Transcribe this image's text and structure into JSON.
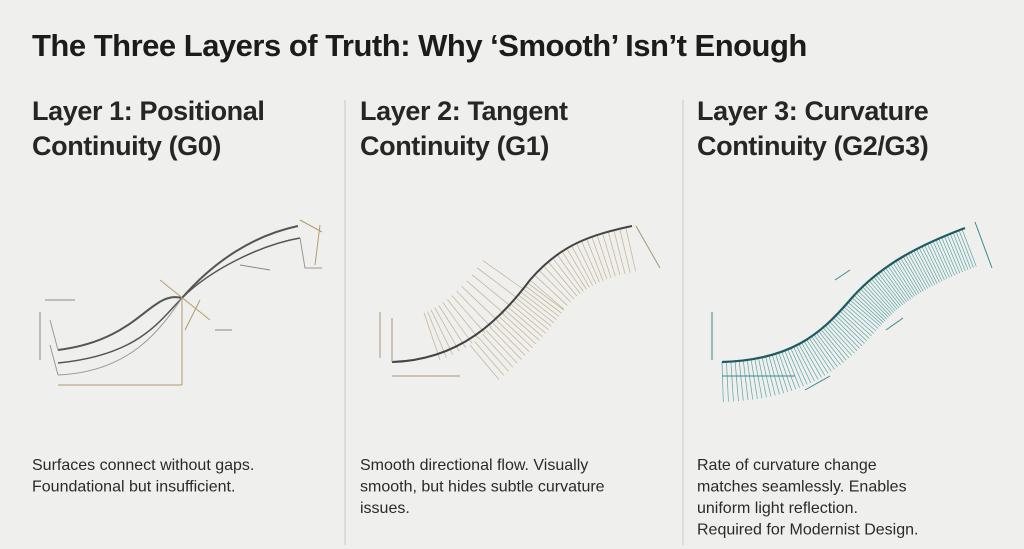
{
  "header": {
    "title": "The Three Layers of Truth: Why ‘Smooth’ Isn’t Enough"
  },
  "columns": [
    {
      "heading": [
        "Layer 1: Positional",
        "Continuity (G0)"
      ],
      "description": [
        "Surfaces connect without gaps.",
        "Foundational but insufficient."
      ]
    },
    {
      "heading": [
        "Layer 2: Tangent",
        "Continuity (G1)"
      ],
      "description": [
        "Smooth directional flow. Visually",
        "smooth, but hides subtle curvature",
        "issues."
      ]
    },
    {
      "heading": [
        "Layer 3: Curvature",
        "Continuity (G2/G3)"
      ],
      "description": [
        "Rate of curvature change",
        "matches seamlessly. Enables",
        "uniform light reflection.",
        "Required for Modernist Design."
      ]
    }
  ]
}
